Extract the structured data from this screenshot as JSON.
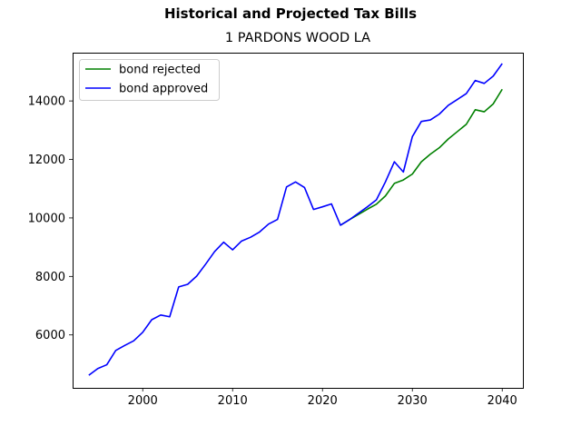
{
  "chart_data": {
    "type": "line",
    "title": "Historical and Projected Tax Bills",
    "subtitle": "1 PARDONS WOOD LA",
    "xlim": [
      1992.2,
      2042.3
    ],
    "ylim": [
      4190,
      15650
    ],
    "xticks": [
      2000,
      2010,
      2020,
      2030,
      2040
    ],
    "yticks": [
      6000,
      8000,
      10000,
      12000,
      14000
    ],
    "legend": "top-left",
    "grid": false,
    "series": [
      {
        "name": "bond rejected",
        "color": "#008000",
        "x": [
          2022,
          2023,
          2024,
          2025,
          2026,
          2027,
          2028,
          2029,
          2030,
          2031,
          2032,
          2033,
          2034,
          2035,
          2036,
          2037,
          2038,
          2039,
          2040
        ],
        "y": [
          9750,
          9940,
          10120,
          10300,
          10470,
          10750,
          11180,
          11300,
          11500,
          11920,
          12180,
          12400,
          12700,
          12950,
          13200,
          13700,
          13630,
          13900,
          14400
        ]
      },
      {
        "name": "bond approved",
        "color": "#0000ff",
        "x": [
          1994,
          1995,
          1996,
          1997,
          1998,
          1999,
          2000,
          2001,
          2002,
          2003,
          2004,
          2005,
          2006,
          2007,
          2008,
          2009,
          2010,
          2011,
          2012,
          2013,
          2014,
          2015,
          2016,
          2017,
          2018,
          2019,
          2020,
          2021,
          2022,
          2023,
          2024,
          2025,
          2026,
          2027,
          2028,
          2029,
          2030,
          2031,
          2032,
          2033,
          2034,
          2035,
          2036,
          2037,
          2038,
          2039,
          2040
        ],
        "y": [
          4620,
          4850,
          4980,
          5470,
          5640,
          5800,
          6090,
          6520,
          6680,
          6620,
          7640,
          7730,
          8010,
          8420,
          8850,
          9170,
          8910,
          9210,
          9340,
          9520,
          9790,
          9950,
          11060,
          11230,
          11040,
          10290,
          10380,
          10480,
          9750,
          9940,
          10160,
          10380,
          10620,
          11230,
          11920,
          11570,
          12780,
          13300,
          13350,
          13550,
          13850,
          14050,
          14250,
          14700,
          14600,
          14850,
          15280
        ]
      }
    ]
  }
}
